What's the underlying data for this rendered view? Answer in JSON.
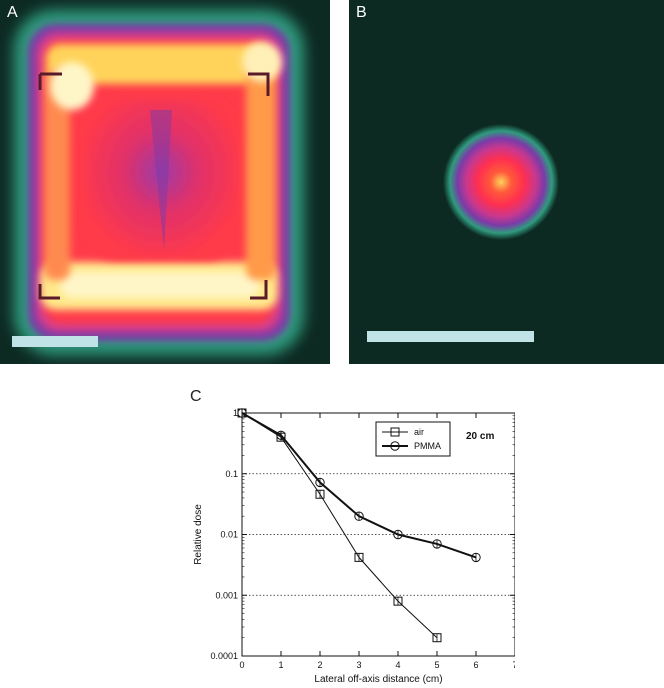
{
  "panels": {
    "a": {
      "letter": "A"
    },
    "b": {
      "letter": "B"
    },
    "c": {
      "letter": "C"
    }
  },
  "colors": {
    "panel_background": "#0d2a22",
    "scale_bar": "#bfe3e6",
    "hot_white": "#fff6c8",
    "hot_yellow": "#ffd35a",
    "hot_red": "#ff2f50",
    "hot_magenta": "#d63c8c",
    "hot_purple": "#7b3aa8",
    "hot_teal": "#2f9b7e"
  },
  "chart_data": {
    "type": "line",
    "xlabel": "Lateral off-axis distance (cm)",
    "ylabel": "Relative dose",
    "xlim": [
      0,
      7
    ],
    "ylim": [
      0.0001,
      1
    ],
    "yscale": "log",
    "xticks": [
      "0",
      "1",
      "2",
      "3",
      "4",
      "5",
      "6",
      "7"
    ],
    "yticks": [
      "1",
      "0.1",
      "0.01",
      "0.001",
      "0.0001"
    ],
    "grid": "horizontal dotted",
    "legend_position": "top-right",
    "annotation": "20 cm",
    "series": [
      {
        "name": "air",
        "marker": "square",
        "line_width": "thin",
        "x": [
          0,
          1,
          2,
          3,
          4,
          5
        ],
        "y": [
          1,
          0.4,
          0.046,
          0.0042,
          0.0008,
          0.0002
        ]
      },
      {
        "name": "PMMA",
        "marker": "circle",
        "line_width": "thick",
        "x": [
          0,
          1,
          2,
          3,
          4,
          5,
          6
        ],
        "y": [
          1,
          0.43,
          0.072,
          0.02,
          0.01,
          0.007,
          0.0042
        ]
      }
    ]
  }
}
